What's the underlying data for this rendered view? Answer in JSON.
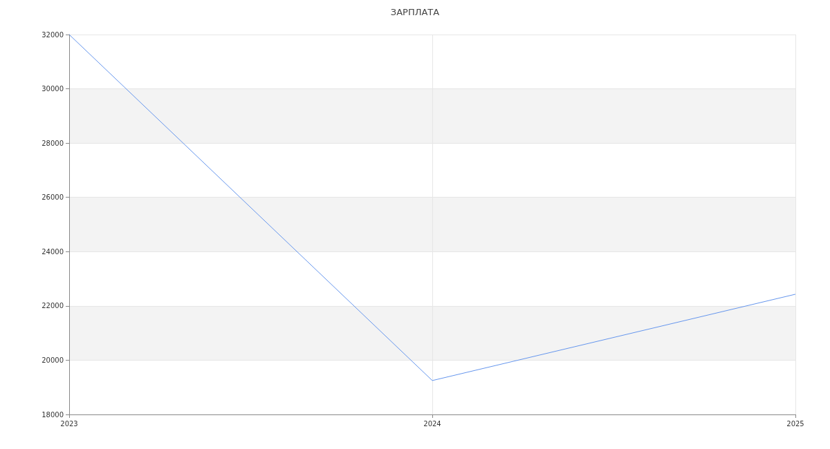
{
  "chart_data": {
    "type": "line",
    "title": "ЗАРПЛАТА",
    "categories": [
      "2023",
      "2024",
      "2025"
    ],
    "series": [
      {
        "color": "#6495ed",
        "values": [
          32000,
          19250,
          22430
        ]
      }
    ],
    "ylim": [
      18000,
      32000
    ],
    "yticks": [
      18000,
      20000,
      22000,
      24000,
      26000,
      28000,
      30000,
      32000
    ],
    "grid": true,
    "marker": "none",
    "line_style": "solid"
  }
}
